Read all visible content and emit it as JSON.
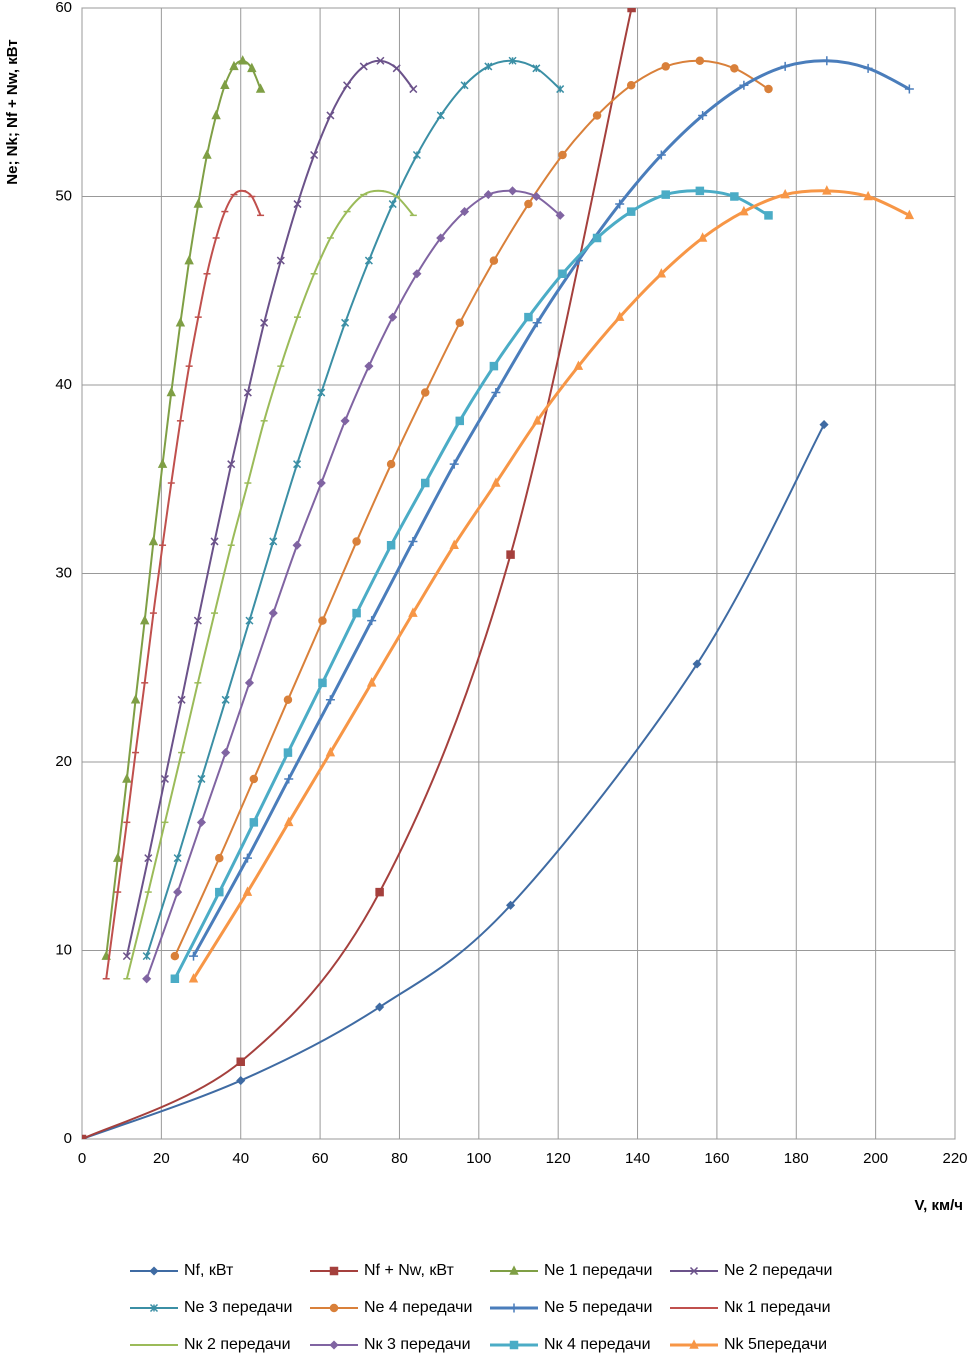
{
  "chart_data": {
    "type": "line",
    "x_label": "V, км/ч",
    "y_label": "Ne; Nk; Nf + Nw, кВт",
    "xlim": [
      0,
      220
    ],
    "xticks": [
      0,
      20,
      40,
      60,
      80,
      100,
      120,
      140,
      160,
      180,
      200,
      220
    ],
    "ylim": [
      0,
      60
    ],
    "yticks": [
      0,
      10,
      20,
      30,
      40,
      50,
      60
    ],
    "grid": true,
    "legend": "bottom",
    "series": [
      {
        "name": "Nf, кВт",
        "color": "#3f6ba3",
        "marker": "diamond",
        "x": [
          0,
          40,
          75,
          108,
          155,
          187
        ],
        "values": [
          0,
          3.1,
          7,
          12.4,
          25.2,
          37.9
        ]
      },
      {
        "name": "Nf + Nw, кВт",
        "color": "#a5403d",
        "marker": "square",
        "x": [
          0,
          40,
          75,
          108,
          138.5
        ],
        "values": [
          0,
          4.1,
          13.1,
          31,
          60
        ]
      },
      {
        "name": "Ne 1 передачи",
        "color": "#7f9f45",
        "marker": "triangle",
        "x": [
          6.1,
          9,
          11.3,
          13.5,
          15.8,
          18,
          20.3,
          22.5,
          24.8,
          27,
          29.3,
          31.5,
          33.8,
          36,
          38.3,
          40.5,
          42.8,
          45
        ],
        "values": [
          9.7,
          14.9,
          19.1,
          23.3,
          27.5,
          31.7,
          35.8,
          39.6,
          43.3,
          46.6,
          49.6,
          52.2,
          54.3,
          55.9,
          56.9,
          57.2,
          56.8,
          55.7
        ]
      },
      {
        "name": "Ne 2 передачи",
        "color": "#6b528a",
        "marker": "x",
        "x": [
          11.3,
          16.7,
          20.9,
          25.1,
          29.2,
          33.4,
          37.6,
          41.8,
          45.9,
          50.1,
          54.3,
          58.5,
          62.6,
          66.8,
          71,
          75.2,
          79.3,
          83.5
        ],
        "values": [
          9.7,
          14.9,
          19.1,
          23.3,
          27.5,
          31.7,
          35.8,
          39.6,
          43.3,
          46.6,
          49.6,
          52.2,
          54.3,
          55.9,
          56.9,
          57.2,
          56.8,
          55.7
        ]
      },
      {
        "name": "Ne 3 передачи",
        "color": "#3b8fa5",
        "marker": "star",
        "x": [
          16.3,
          24.1,
          30.1,
          36.2,
          42.2,
          48.2,
          54.2,
          60.3,
          66.3,
          72.3,
          78.3,
          84.4,
          90.4,
          96.4,
          102.4,
          108.5,
          114.5,
          120.5
        ],
        "values": [
          9.7,
          14.9,
          19.1,
          23.3,
          27.5,
          31.7,
          35.8,
          39.6,
          43.3,
          46.6,
          49.6,
          52.2,
          54.3,
          55.9,
          56.9,
          57.2,
          56.8,
          55.7
        ]
      },
      {
        "name": "Ne 4 передачи",
        "color": "#d9803a",
        "marker": "circle",
        "x": [
          23.4,
          34.6,
          43.3,
          51.9,
          60.6,
          69.2,
          77.9,
          86.5,
          95.2,
          103.8,
          112.5,
          121.1,
          129.8,
          138.4,
          147.1,
          155.7,
          164.4,
          173
        ],
        "values": [
          9.7,
          14.9,
          19.1,
          23.3,
          27.5,
          31.7,
          35.8,
          39.6,
          43.3,
          46.6,
          49.6,
          52.2,
          54.3,
          55.9,
          56.9,
          57.2,
          56.8,
          55.7
        ]
      },
      {
        "name": "Ne 5 передачи",
        "color": "#4a7dbb",
        "marker": "plus",
        "x": [
          28.1,
          41.7,
          52.1,
          62.6,
          73,
          83.4,
          93.8,
          104.3,
          114.7,
          125.1,
          135.5,
          146,
          156.4,
          166.8,
          177.2,
          187.7,
          198.1,
          208.5
        ],
        "values": [
          9.7,
          14.9,
          19.1,
          23.3,
          27.5,
          31.7,
          35.8,
          39.6,
          43.3,
          46.6,
          49.6,
          52.2,
          54.3,
          55.9,
          56.9,
          57.2,
          56.8,
          55.7
        ]
      },
      {
        "name": "Nк 1 передачи",
        "color": "#c0504d",
        "marker": "dash",
        "x": [
          6.1,
          9,
          11.3,
          13.5,
          15.8,
          18,
          20.3,
          22.5,
          24.8,
          27,
          29.3,
          31.5,
          33.8,
          36,
          38.3,
          40.5,
          42.8,
          45
        ],
        "values": [
          8.5,
          13.1,
          16.8,
          20.5,
          24.2,
          27.9,
          31.5,
          34.8,
          38.1,
          41,
          43.6,
          45.9,
          47.8,
          49.2,
          50.1,
          50.3,
          50,
          49
        ]
      },
      {
        "name": "Nк 2 передачи",
        "color": "#9bbb59",
        "marker": "dash",
        "x": [
          11.3,
          16.7,
          20.9,
          25.1,
          29.2,
          33.4,
          37.6,
          41.8,
          45.9,
          50.1,
          54.3,
          58.5,
          62.6,
          66.8,
          71,
          75.2,
          79.3,
          83.5
        ],
        "values": [
          8.5,
          13.1,
          16.8,
          20.5,
          24.2,
          27.9,
          31.5,
          34.8,
          38.1,
          41,
          43.6,
          45.9,
          47.8,
          49.2,
          50.1,
          50.3,
          50,
          49
        ]
      },
      {
        "name": "Nк 3 передачи",
        "color": "#8064a2",
        "marker": "diamond",
        "x": [
          16.3,
          24.1,
          30.1,
          36.2,
          42.2,
          48.2,
          54.2,
          60.3,
          66.3,
          72.3,
          78.3,
          84.4,
          90.4,
          96.4,
          102.4,
          108.5,
          114.5,
          120.5
        ],
        "values": [
          8.5,
          13.1,
          16.8,
          20.5,
          24.2,
          27.9,
          31.5,
          34.8,
          38.1,
          41,
          43.6,
          45.9,
          47.8,
          49.2,
          50.1,
          50.3,
          50,
          49
        ]
      },
      {
        "name": "Nк 4 передачи",
        "color": "#4bacc6",
        "marker": "square",
        "x": [
          23.4,
          34.6,
          43.3,
          51.9,
          60.6,
          69.2,
          77.9,
          86.5,
          95.2,
          103.8,
          112.5,
          121.1,
          129.8,
          138.4,
          147.1,
          155.7,
          164.4,
          173
        ],
        "values": [
          8.5,
          13.1,
          16.8,
          20.5,
          24.2,
          27.9,
          31.5,
          34.8,
          38.1,
          41,
          43.6,
          45.9,
          47.8,
          49.2,
          50.1,
          50.3,
          50,
          49
        ]
      },
      {
        "name": "Nk 5передачи",
        "color": "#f79646",
        "marker": "triangle",
        "x": [
          28.1,
          41.7,
          52.1,
          62.6,
          73,
          83.4,
          93.8,
          104.3,
          114.7,
          125.1,
          135.5,
          146,
          156.4,
          166.8,
          177.2,
          187.7,
          198.1,
          208.5
        ],
        "values": [
          8.5,
          13.1,
          16.8,
          20.5,
          24.2,
          27.9,
          31.5,
          34.8,
          38.1,
          41,
          43.6,
          45.9,
          47.8,
          49.2,
          50.1,
          50.3,
          50,
          49
        ]
      }
    ]
  }
}
